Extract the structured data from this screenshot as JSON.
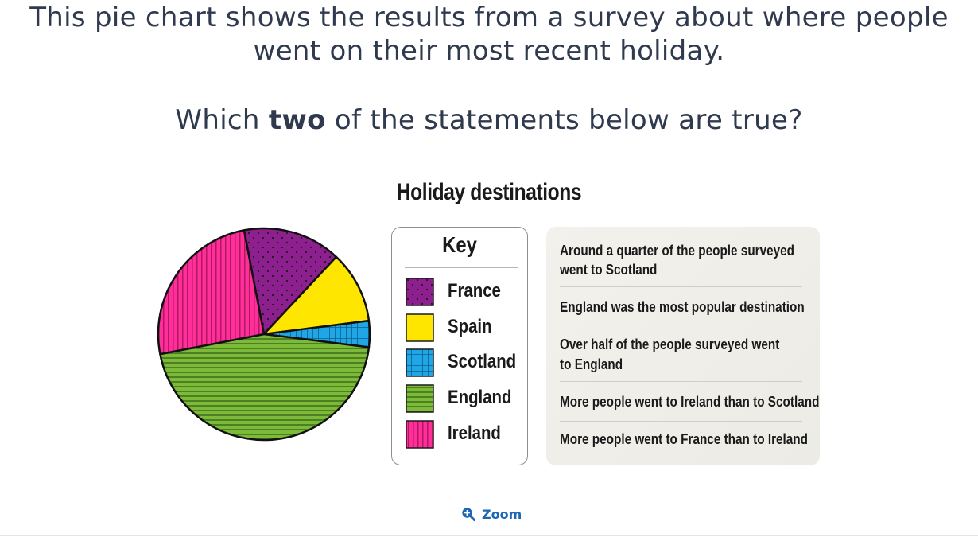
{
  "question": {
    "line1": "This pie chart shows the results from a survey about where people",
    "line2": "went on their most recent holiday.",
    "line3_before": "Which ",
    "line3_bold": "two",
    "line3_after": " of the statements below are true?"
  },
  "chart_data": {
    "type": "pie",
    "title": "Holiday destinations",
    "legend_title": "Key",
    "legend_position": "right",
    "slices": [
      {
        "label": "France",
        "value": 15,
        "color": "#8e1f8f",
        "pattern": "dots"
      },
      {
        "label": "Spain",
        "value": 11,
        "color": "#ffe600",
        "pattern": "solid"
      },
      {
        "label": "Scotland",
        "value": 4,
        "color": "#1ea6e6",
        "pattern": "grid"
      },
      {
        "label": "England",
        "value": 45,
        "color": "#7cba3a",
        "pattern": "horizontal-stripes"
      },
      {
        "label": "Ireland",
        "value": 25,
        "color": "#ff2e9a",
        "pattern": "vertical-stripes"
      }
    ]
  },
  "statements": [
    "Around a quarter of the people surveyed",
    "went to Scotland",
    "England was the most popular destination",
    "Over half of the people surveyed went",
    "to England",
    "More people went to Ireland than to Scotland",
    "More people went to France than to Ireland"
  ],
  "zoom": {
    "label": "Zoom",
    "icon": "zoom-in-icon"
  }
}
